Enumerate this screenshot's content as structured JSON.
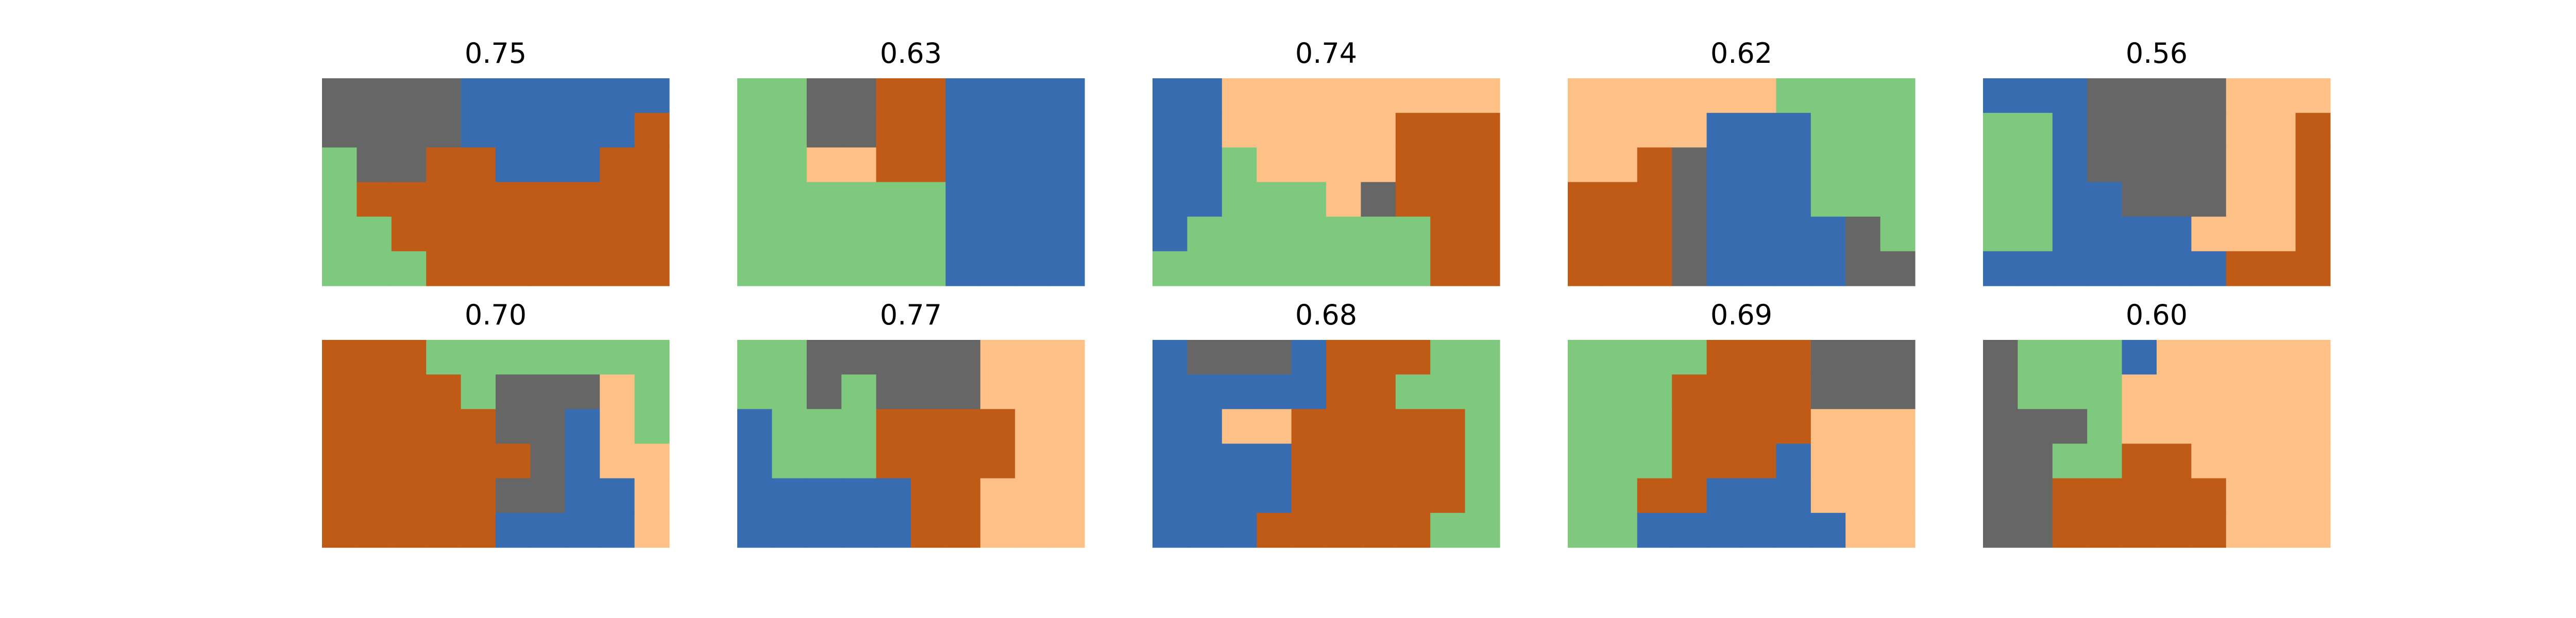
{
  "chart_data": [
    {
      "type": "heatmap",
      "title": "0.75",
      "grid": [
        [
          3,
          3,
          3,
          3,
          0,
          0,
          0,
          0,
          0,
          0
        ],
        [
          3,
          3,
          3,
          3,
          0,
          0,
          0,
          0,
          0,
          1
        ],
        [
          2,
          3,
          3,
          1,
          1,
          0,
          0,
          0,
          1,
          1
        ],
        [
          2,
          1,
          1,
          1,
          1,
          1,
          1,
          1,
          1,
          1
        ],
        [
          2,
          2,
          1,
          1,
          1,
          1,
          1,
          1,
          1,
          1
        ],
        [
          2,
          2,
          2,
          1,
          1,
          1,
          1,
          1,
          1,
          1
        ]
      ]
    },
    {
      "type": "heatmap",
      "title": "0.63",
      "grid": [
        [
          2,
          2,
          3,
          3,
          1,
          1,
          0,
          0,
          0,
          0
        ],
        [
          2,
          2,
          3,
          3,
          1,
          1,
          0,
          0,
          0,
          0
        ],
        [
          2,
          2,
          4,
          4,
          1,
          1,
          0,
          0,
          0,
          0
        ],
        [
          2,
          2,
          2,
          2,
          2,
          2,
          0,
          0,
          0,
          0
        ],
        [
          2,
          2,
          2,
          2,
          2,
          2,
          0,
          0,
          0,
          0
        ],
        [
          2,
          2,
          2,
          2,
          2,
          2,
          0,
          0,
          0,
          0
        ]
      ]
    },
    {
      "type": "heatmap",
      "title": "0.74",
      "grid": [
        [
          0,
          0,
          4,
          4,
          4,
          4,
          4,
          4,
          4,
          4
        ],
        [
          0,
          0,
          4,
          4,
          4,
          4,
          4,
          1,
          1,
          1
        ],
        [
          0,
          0,
          2,
          4,
          4,
          4,
          4,
          1,
          1,
          1
        ],
        [
          0,
          0,
          2,
          2,
          2,
          4,
          3,
          1,
          1,
          1
        ],
        [
          0,
          2,
          2,
          2,
          2,
          2,
          2,
          2,
          1,
          1
        ],
        [
          2,
          2,
          2,
          2,
          2,
          2,
          2,
          2,
          1,
          1
        ]
      ]
    },
    {
      "type": "heatmap",
      "title": "0.62",
      "grid": [
        [
          4,
          4,
          4,
          4,
          4,
          4,
          2,
          2,
          2,
          2
        ],
        [
          4,
          4,
          4,
          4,
          0,
          0,
          0,
          2,
          2,
          2
        ],
        [
          4,
          4,
          1,
          3,
          0,
          0,
          0,
          2,
          2,
          2
        ],
        [
          1,
          1,
          1,
          3,
          0,
          0,
          0,
          2,
          2,
          2
        ],
        [
          1,
          1,
          1,
          3,
          0,
          0,
          0,
          0,
          3,
          2
        ],
        [
          1,
          1,
          1,
          3,
          0,
          0,
          0,
          0,
          3,
          3
        ]
      ]
    },
    {
      "type": "heatmap",
      "title": "0.56",
      "grid": [
        [
          0,
          0,
          0,
          3,
          3,
          3,
          3,
          4,
          4,
          4
        ],
        [
          2,
          2,
          0,
          3,
          3,
          3,
          3,
          4,
          4,
          1
        ],
        [
          2,
          2,
          0,
          3,
          3,
          3,
          3,
          4,
          4,
          1
        ],
        [
          2,
          2,
          0,
          0,
          3,
          3,
          3,
          4,
          4,
          1
        ],
        [
          2,
          2,
          0,
          0,
          0,
          0,
          4,
          4,
          4,
          1
        ],
        [
          0,
          0,
          0,
          0,
          0,
          0,
          0,
          1,
          1,
          1
        ]
      ]
    },
    {
      "type": "heatmap",
      "title": "0.70",
      "grid": [
        [
          1,
          1,
          1,
          2,
          2,
          2,
          2,
          2,
          2,
          2
        ],
        [
          1,
          1,
          1,
          1,
          2,
          3,
          3,
          3,
          4,
          2
        ],
        [
          1,
          1,
          1,
          1,
          1,
          3,
          3,
          0,
          4,
          2
        ],
        [
          1,
          1,
          1,
          1,
          1,
          1,
          3,
          0,
          4,
          4
        ],
        [
          1,
          1,
          1,
          1,
          1,
          3,
          3,
          0,
          0,
          4
        ],
        [
          1,
          1,
          1,
          1,
          1,
          0,
          0,
          0,
          0,
          4
        ]
      ]
    },
    {
      "type": "heatmap",
      "title": "0.77",
      "grid": [
        [
          2,
          2,
          3,
          3,
          3,
          3,
          3,
          4,
          4,
          4
        ],
        [
          2,
          2,
          3,
          2,
          3,
          3,
          3,
          4,
          4,
          4
        ],
        [
          0,
          2,
          2,
          2,
          1,
          1,
          1,
          1,
          4,
          4
        ],
        [
          0,
          2,
          2,
          2,
          1,
          1,
          1,
          1,
          4,
          4
        ],
        [
          0,
          0,
          0,
          0,
          0,
          1,
          1,
          4,
          4,
          4
        ],
        [
          0,
          0,
          0,
          0,
          0,
          1,
          1,
          4,
          4,
          4
        ]
      ]
    },
    {
      "type": "heatmap",
      "title": "0.68",
      "grid": [
        [
          0,
          3,
          3,
          3,
          0,
          1,
          1,
          1,
          2,
          2
        ],
        [
          0,
          0,
          0,
          0,
          0,
          1,
          1,
          2,
          2,
          2
        ],
        [
          0,
          0,
          4,
          4,
          1,
          1,
          1,
          1,
          1,
          2
        ],
        [
          0,
          0,
          0,
          0,
          1,
          1,
          1,
          1,
          1,
          2
        ],
        [
          0,
          0,
          0,
          0,
          1,
          1,
          1,
          1,
          1,
          2
        ],
        [
          0,
          0,
          0,
          1,
          1,
          1,
          1,
          1,
          2,
          2
        ]
      ]
    },
    {
      "type": "heatmap",
      "title": "0.69",
      "grid": [
        [
          2,
          2,
          2,
          2,
          1,
          1,
          1,
          3,
          3,
          3
        ],
        [
          2,
          2,
          2,
          1,
          1,
          1,
          1,
          3,
          3,
          3
        ],
        [
          2,
          2,
          2,
          1,
          1,
          1,
          1,
          4,
          4,
          4
        ],
        [
          2,
          2,
          2,
          1,
          1,
          1,
          0,
          4,
          4,
          4
        ],
        [
          2,
          2,
          1,
          1,
          0,
          0,
          0,
          4,
          4,
          4
        ],
        [
          2,
          2,
          0,
          0,
          0,
          0,
          0,
          0,
          4,
          4
        ]
      ]
    },
    {
      "type": "heatmap",
      "title": "0.60",
      "grid": [
        [
          3,
          2,
          2,
          2,
          0,
          4,
          4,
          4,
          4,
          4
        ],
        [
          3,
          2,
          2,
          2,
          4,
          4,
          4,
          4,
          4,
          4
        ],
        [
          3,
          3,
          3,
          2,
          4,
          4,
          4,
          4,
          4,
          4
        ],
        [
          3,
          3,
          2,
          2,
          1,
          1,
          4,
          4,
          4,
          4
        ],
        [
          3,
          3,
          1,
          1,
          1,
          1,
          1,
          4,
          4,
          4
        ],
        [
          3,
          3,
          1,
          1,
          1,
          1,
          1,
          4,
          4,
          4
        ]
      ]
    }
  ],
  "colors": [
    "#386cb0",
    "#bf5b17",
    "#7fc97f",
    "#666666",
    "#fdc086"
  ]
}
